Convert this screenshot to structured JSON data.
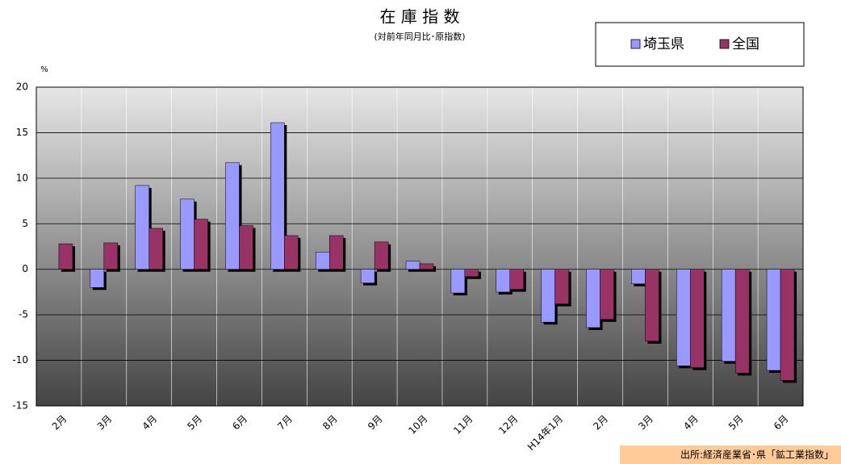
{
  "chart_data": {
    "type": "bar",
    "title": "在 庫 指 数",
    "subtitle": "(対前年同月比･原指数)",
    "y_unit": "%",
    "source": "出所:経済産業省･県「鉱工業指数」",
    "categories": [
      "2月",
      "3月",
      "4月",
      "5月",
      "6月",
      "7月",
      "8月",
      "9月",
      "10月",
      "11月",
      "12月",
      "H14年1月",
      "2月",
      "3月",
      "4月",
      "5月",
      "6月"
    ],
    "series": [
      {
        "name": "埼玉県",
        "color": "#9999ff",
        "values": [
          0,
          -2,
          9.2,
          7.7,
          11.7,
          16.1,
          1.9,
          -1.5,
          0.9,
          -2.6,
          -2.5,
          -5.8,
          -6.4,
          -1.6,
          -10.6,
          -10.1,
          -11.1
        ]
      },
      {
        "name": "全国",
        "color": "#993366",
        "values": [
          2.8,
          2.9,
          4.5,
          5.5,
          4.8,
          3.7,
          3.7,
          3.0,
          0.6,
          -0.8,
          -2.2,
          -3.8,
          -5.5,
          -7.9,
          -10.8,
          -11.4,
          -12.2
        ]
      }
    ],
    "ylim": [
      -15,
      20
    ],
    "yticks": [
      -15,
      -10,
      -5,
      0,
      5,
      10,
      15,
      20
    ],
    "grid": true,
    "legend": "top-right"
  }
}
